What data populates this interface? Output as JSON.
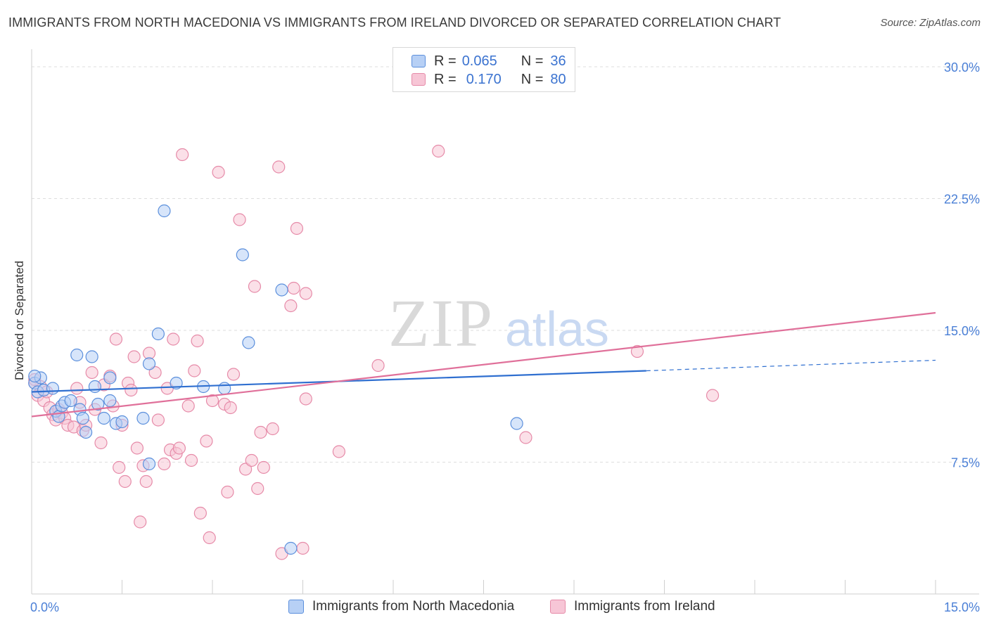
{
  "header": {
    "title": "IMMIGRANTS FROM NORTH MACEDONIA VS IMMIGRANTS FROM IRELAND DIVORCED OR SEPARATED CORRELATION CHART",
    "source": "Source: ZipAtlas.com"
  },
  "watermark": {
    "zip": "ZIP",
    "atlas": "atlas"
  },
  "legend": {
    "rows": [
      {
        "r_label": "R =",
        "r_value": "0.065",
        "n_label": "N =",
        "n_value": "36"
      },
      {
        "r_label": "R =",
        "r_value": "0.170",
        "n_label": "N =",
        "n_value": "80"
      }
    ]
  },
  "colors": {
    "blue_fill": "#b7d0f5",
    "blue_stroke": "#5b8fdc",
    "blue_line": "#2f6fd0",
    "pink_fill": "#f7c6d6",
    "pink_stroke": "#e68aa8",
    "pink_line": "#e0709a",
    "tick_text": "#4a7fd6",
    "grid": "#dedede"
  },
  "chart_data": {
    "type": "scatter",
    "title": "IMMIGRANTS FROM NORTH MACEDONIA VS IMMIGRANTS FROM IRELAND DIVORCED OR SEPARATED CORRELATION CHART",
    "xlabel": "",
    "ylabel": "Divorced or Separated",
    "xlim": [
      0,
      15
    ],
    "ylim": [
      0,
      31
    ],
    "x_tick_labels": {
      "min": "0.0%",
      "max": "15.0%"
    },
    "x_minor_ticks": [
      1.5,
      3.0,
      4.5,
      6.0,
      7.5,
      9.0,
      10.5,
      12.0,
      13.5,
      15.0
    ],
    "y_ticks": [
      {
        "value": 7.5,
        "label": "7.5%"
      },
      {
        "value": 15.0,
        "label": "15.0%"
      },
      {
        "value": 22.5,
        "label": "22.5%"
      },
      {
        "value": 30.0,
        "label": "30.0%"
      }
    ],
    "series": [
      {
        "name": "Immigrants from North Macedonia",
        "color": "blue",
        "points": [
          [
            0.05,
            12.0
          ],
          [
            0.1,
            11.5
          ],
          [
            0.15,
            12.3
          ],
          [
            0.2,
            11.6
          ],
          [
            0.35,
            11.7
          ],
          [
            0.4,
            10.4
          ],
          [
            0.45,
            10.1
          ],
          [
            0.5,
            10.7
          ],
          [
            0.55,
            10.9
          ],
          [
            0.65,
            11.0
          ],
          [
            0.75,
            13.6
          ],
          [
            0.8,
            10.5
          ],
          [
            0.85,
            10.0
          ],
          [
            0.9,
            9.2
          ],
          [
            1.0,
            13.5
          ],
          [
            1.05,
            11.8
          ],
          [
            1.1,
            10.8
          ],
          [
            1.2,
            10.0
          ],
          [
            1.3,
            11.0
          ],
          [
            1.3,
            12.3
          ],
          [
            1.4,
            9.7
          ],
          [
            1.5,
            9.8
          ],
          [
            1.85,
            10.0
          ],
          [
            1.95,
            7.4
          ],
          [
            1.95,
            13.1
          ],
          [
            2.1,
            14.8
          ],
          [
            2.2,
            21.8
          ],
          [
            2.4,
            12.0
          ],
          [
            2.85,
            11.8
          ],
          [
            3.2,
            11.7
          ],
          [
            3.5,
            19.3
          ],
          [
            3.6,
            14.3
          ],
          [
            4.15,
            17.3
          ],
          [
            4.3,
            2.6
          ],
          [
            8.05,
            9.7
          ],
          [
            0.05,
            12.4
          ]
        ],
        "trend": {
          "x0": 0.0,
          "y0": 11.5,
          "x1": 10.2,
          "y1": 12.7,
          "dash_to_x": 15.0,
          "dash_to_y": 13.3
        }
      },
      {
        "name": "Immigrants from Ireland",
        "color": "pink",
        "points": [
          [
            0.05,
            12.0
          ],
          [
            0.1,
            11.3
          ],
          [
            0.15,
            11.8
          ],
          [
            0.2,
            11.0
          ],
          [
            0.25,
            11.5
          ],
          [
            0.3,
            10.6
          ],
          [
            0.35,
            10.2
          ],
          [
            0.4,
            9.9
          ],
          [
            0.45,
            10.5
          ],
          [
            0.5,
            10.3
          ],
          [
            0.55,
            10.0
          ],
          [
            0.6,
            9.6
          ],
          [
            0.7,
            9.5
          ],
          [
            0.75,
            11.7
          ],
          [
            0.8,
            10.9
          ],
          [
            0.85,
            9.3
          ],
          [
            0.9,
            9.6
          ],
          [
            1.0,
            12.6
          ],
          [
            1.05,
            10.5
          ],
          [
            1.15,
            8.6
          ],
          [
            1.2,
            11.9
          ],
          [
            1.3,
            12.4
          ],
          [
            1.35,
            10.7
          ],
          [
            1.4,
            14.5
          ],
          [
            1.45,
            7.2
          ],
          [
            1.5,
            9.6
          ],
          [
            1.55,
            6.4
          ],
          [
            1.6,
            12.0
          ],
          [
            1.65,
            11.6
          ],
          [
            1.7,
            13.5
          ],
          [
            1.75,
            8.3
          ],
          [
            1.8,
            4.1
          ],
          [
            1.85,
            7.3
          ],
          [
            1.9,
            6.4
          ],
          [
            1.95,
            13.7
          ],
          [
            2.05,
            12.6
          ],
          [
            2.1,
            9.9
          ],
          [
            2.2,
            7.4
          ],
          [
            2.25,
            11.7
          ],
          [
            2.3,
            8.2
          ],
          [
            2.35,
            14.5
          ],
          [
            2.4,
            8.0
          ],
          [
            2.45,
            8.3
          ],
          [
            2.5,
            25.0
          ],
          [
            2.6,
            10.7
          ],
          [
            2.65,
            7.6
          ],
          [
            2.7,
            12.7
          ],
          [
            2.75,
            14.4
          ],
          [
            2.8,
            4.6
          ],
          [
            2.9,
            8.7
          ],
          [
            2.95,
            3.2
          ],
          [
            3.0,
            11.0
          ],
          [
            3.1,
            24.0
          ],
          [
            3.2,
            10.8
          ],
          [
            3.25,
            5.8
          ],
          [
            3.3,
            10.6
          ],
          [
            3.35,
            12.5
          ],
          [
            3.45,
            21.3
          ],
          [
            3.55,
            7.1
          ],
          [
            3.65,
            7.6
          ],
          [
            3.7,
            17.5
          ],
          [
            3.75,
            6.0
          ],
          [
            3.8,
            9.2
          ],
          [
            3.85,
            7.2
          ],
          [
            4.1,
            24.3
          ],
          [
            4.15,
            2.3
          ],
          [
            4.3,
            16.4
          ],
          [
            4.35,
            17.4
          ],
          [
            4.4,
            20.8
          ],
          [
            4.5,
            2.6
          ],
          [
            4.55,
            11.1
          ],
          [
            4.55,
            17.1
          ],
          [
            5.1,
            8.1
          ],
          [
            5.75,
            13.0
          ],
          [
            6.75,
            25.2
          ],
          [
            8.2,
            8.9
          ],
          [
            10.05,
            13.8
          ],
          [
            11.3,
            11.3
          ],
          [
            4.0,
            9.4
          ],
          [
            0.05,
            12.2
          ]
        ],
        "trend": {
          "x0": 0.0,
          "y0": 10.1,
          "x1": 15.0,
          "y1": 16.0
        }
      }
    ]
  },
  "bottom_legend": {
    "blue_label": "Immigrants from North Macedonia",
    "pink_label": "Immigrants from Ireland"
  }
}
